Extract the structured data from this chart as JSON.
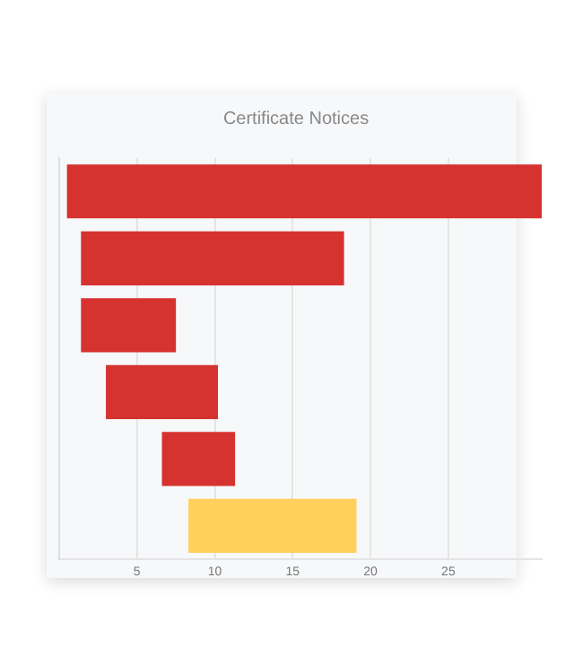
{
  "chart_data": {
    "type": "bar",
    "orientation": "horizontal",
    "title": "Certificate Notices",
    "categories": [
      null,
      null,
      null,
      null,
      null,
      null
    ],
    "base": [
      0.5,
      1.4,
      1.4,
      3.0,
      6.6,
      8.3
    ],
    "values": [
      30.5,
      16.9,
      6.1,
      7.2,
      4.7,
      10.8
    ],
    "colors": [
      "#d63230",
      "#d63230",
      "#d63230",
      "#d63230",
      "#d63230",
      "#ffd05c"
    ],
    "xlim": [
      0,
      31
    ],
    "xticks": [
      5,
      10,
      15,
      20,
      25
    ],
    "grid": "x",
    "tick_labels": "x"
  }
}
